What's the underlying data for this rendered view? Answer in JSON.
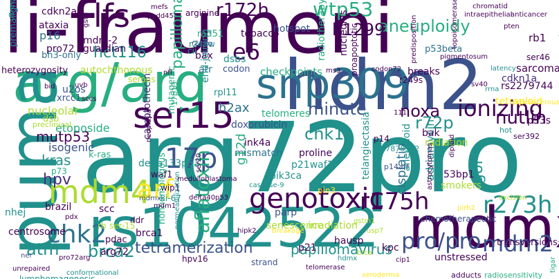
{
  "palette": {
    "dark_purple": "#440154",
    "indigo": "#472d7b",
    "slate_blue": "#3b528b",
    "blue": "#2c728e",
    "teal": "#21918c",
    "teal_green": "#28ae80",
    "green": "#5ec962",
    "light_green": "#addc30",
    "yellow": "#fde725",
    "background": "#ffffff"
  },
  "words": [
    {
      "text": "li-fraumeni"
    },
    {
      "text": "arg72pro"
    },
    {
      "text": "rs1042522"
    },
    {
      "text": "arg/arg"
    },
    {
      "text": "hdm2"
    },
    {
      "text": "mdmx"
    },
    {
      "text": "puma"
    },
    {
      "text": "snp309"
    },
    {
      "text": "ser15"
    },
    {
      "text": "lfs"
    },
    {
      "text": "genotoxic"
    },
    {
      "text": "mdm4"
    },
    {
      "text": "r273h"
    },
    {
      "text": "r175h"
    },
    {
      "text": "pro/pro"
    },
    {
      "text": "mdm2"
    },
    {
      "text": "17p"
    },
    {
      "text": "arf"
    },
    {
      "text": "chk2"
    },
    {
      "text": "e6"
    },
    {
      "text": "r172h"
    },
    {
      "text": "wtp53"
    },
    {
      "text": "aneuploidy"
    },
    {
      "text": "h1299"
    },
    {
      "text": "hct116"
    },
    {
      "text": "ionizing"
    },
    {
      "text": "minute"
    },
    {
      "text": "noxa"
    },
    {
      "text": "r72p"
    },
    {
      "text": "nutlin"
    },
    {
      "text": "tetramerization"
    },
    {
      "text": "papillomavirus"
    },
    {
      "text": "chk1"
    },
    {
      "text": "mutp53"
    },
    {
      "text": "kras"
    },
    {
      "text": "hpv"
    },
    {
      "text": "atm"
    },
    {
      "text": "brca2"
    },
    {
      "text": "aflatoxin"
    },
    {
      "text": "gof"
    },
    {
      "text": "instability"
    },
    {
      "text": "carcinogens"
    },
    {
      "text": "cdkn2a"
    },
    {
      "text": "ataxia"
    },
    {
      "text": "p16"
    },
    {
      "text": "pro72"
    },
    {
      "text": "mdm-2"
    },
    {
      "text": "guardian"
    },
    {
      "text": "autochthonous"
    },
    {
      "text": "heterozygosity"
    },
    {
      "text": "nucleolar"
    },
    {
      "text": "u2os"
    },
    {
      "text": "xrcc1"
    },
    {
      "text": "etoposide"
    },
    {
      "text": "isogenic"
    },
    {
      "text": "papilloma"
    },
    {
      "text": "hotspot"
    },
    {
      "text": "arginine"
    },
    {
      "text": "tobacco"
    },
    {
      "text": "bax"
    },
    {
      "text": "atr"
    },
    {
      "text": "dsbs"
    },
    {
      "text": "codon"
    },
    {
      "text": "checkpoints"
    },
    {
      "text": "breaks"
    },
    {
      "text": "sarcomas"
    },
    {
      "text": "cdkn1a"
    },
    {
      "text": "rs2279744"
    },
    {
      "text": "tetraploid"
    },
    {
      "text": "h2ax"
    },
    {
      "text": "telomeres"
    },
    {
      "text": "doxorubicin"
    },
    {
      "text": "ink4a"
    },
    {
      "text": "mismatch"
    },
    {
      "text": "proline"
    },
    {
      "text": "p21waf1"
    },
    {
      "text": "pik3ca"
    },
    {
      "text": "telangiectasia"
    },
    {
      "text": "senescence"
    },
    {
      "text": "irradiation"
    },
    {
      "text": "hausp"
    },
    {
      "text": "transversions"
    },
    {
      "text": "unstressed"
    },
    {
      "text": "brca1"
    },
    {
      "text": "arg72"
    },
    {
      "text": "hpv16"
    },
    {
      "text": "kpc"
    },
    {
      "text": "p21"
    },
    {
      "text": "strand"
    },
    {
      "text": "cisplatin"
    },
    {
      "text": "adriamycin"
    },
    {
      "text": "53bp1"
    },
    {
      "text": "smokers"
    },
    {
      "text": "p53s"
    },
    {
      "text": "bak"
    },
    {
      "text": "radiation"
    },
    {
      "text": "delta133p53"
    },
    {
      "text": "waf1"
    },
    {
      "text": "wip1"
    },
    {
      "text": "ki-67"
    },
    {
      "text": "scc"
    },
    {
      "text": "brazil"
    },
    {
      "text": "nhej"
    },
    {
      "text": "centrosome"
    },
    {
      "text": "ddr"
    },
    {
      "text": "pdac"
    },
    {
      "text": "nonhomologous"
    },
    {
      "text": "camptothecin"
    },
    {
      "text": "g12d"
    },
    {
      "text": "ser46"
    },
    {
      "text": "rb1"
    },
    {
      "text": "p53beta"
    },
    {
      "text": "radiotherapy"
    },
    {
      "text": "nucleolus"
    },
    {
      "text": "proapoptotic"
    },
    {
      "text": "aneuploid"
    },
    {
      "text": "bh3-only"
    },
    {
      "text": "premalignant"
    },
    {
      "text": "end-joining"
    },
    {
      "text": "rad51"
    },
    {
      "text": "r248w"
    },
    {
      "text": "cii"
    },
    {
      "text": "serous"
    },
    {
      "text": "mutagenic"
    },
    {
      "text": "rpl11"
    },
    {
      "text": "r249s"
    },
    {
      "text": "p14"
    },
    {
      "text": "rs17878362"
    },
    {
      "text": "p14arf"
    },
    {
      "text": "parp"
    },
    {
      "text": "pin3"
    },
    {
      "text": "chemotherapeutic"
    },
    {
      "text": "k-ras"
    },
    {
      "text": "dsb"
    },
    {
      "text": "preclinical"
    },
    {
      "text": "p73"
    },
    {
      "text": "ser-15"
    },
    {
      "text": "rb"
    },
    {
      "text": "lymphomagenesis"
    },
    {
      "text": "conformational"
    },
    {
      "text": "unrepaired"
    },
    {
      "text": "pro72arg"
    },
    {
      "text": "ner"
    },
    {
      "text": "adducts"
    },
    {
      "text": "radiosensitivity"
    },
    {
      "text": "xeroderma"
    },
    {
      "text": "telomerase"
    },
    {
      "text": "hdmx"
    },
    {
      "text": "cip1"
    },
    {
      "text": "usp7"
    },
    {
      "text": "breakage"
    },
    {
      "text": "hipk2"
    },
    {
      "text": "permeabilization"
    },
    {
      "text": "delta40p53"
    },
    {
      "text": "caspase-9"
    },
    {
      "text": "medulloblastoma"
    },
    {
      "text": "neoplasia"
    },
    {
      "text": "mdmx"
    },
    {
      "text": "pirh2"
    },
    {
      "text": "excision"
    },
    {
      "text": "ser392"
    },
    {
      "text": "hot"
    },
    {
      "text": "diploid"
    },
    {
      "text": "astrocytomas"
    },
    {
      "text": "latency"
    },
    {
      "text": "precancerous"
    },
    {
      "text": "rrna"
    },
    {
      "text": "sv40"
    },
    {
      "text": "codon72"
    },
    {
      "text": "ms3"
    },
    {
      "text": "pigmentosum"
    },
    {
      "text": "topoisomerase"
    },
    {
      "text": "predisposition"
    },
    {
      "text": "intraepithelial"
    },
    {
      "text": "anticancer"
    },
    {
      "text": "chromatid"
    },
    {
      "text": "padd45"
    },
    {
      "text": "mefs"
    },
    {
      "text": "gsttl"
    },
    {
      "text": "ultraviolet"
    },
    {
      "text": "uvb"
    },
    {
      "text": "sccs"
    },
    {
      "text": "bid"
    },
    {
      "text": "nfl"
    },
    {
      "text": "r248q"
    },
    {
      "text": "pten"
    },
    {
      "text": "engineered"
    },
    {
      "text": "tigar"
    },
    {
      "text": "gstm1"
    },
    {
      "text": "brca"
    },
    {
      "text": "ser20"
    },
    {
      "text": "mdm1"
    },
    {
      "text": "17p13"
    },
    {
      "text": "pdx"
    },
    {
      "text": "111"
    }
  ]
}
